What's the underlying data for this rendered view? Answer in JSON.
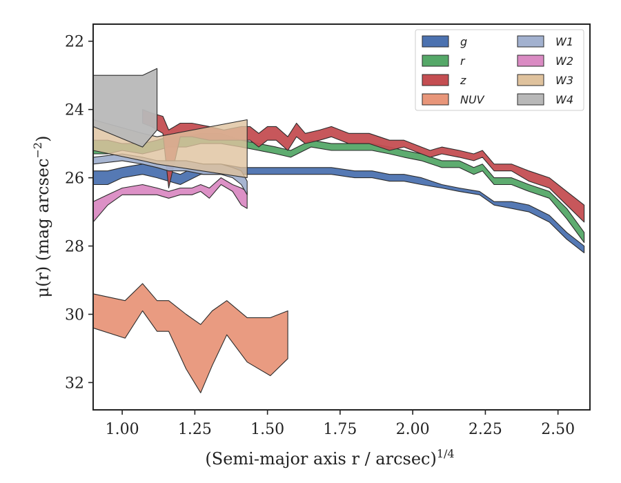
{
  "chart_data": {
    "type": "area",
    "subtype": "surface-brightness-profile-bands",
    "xlabel": "(Semi-major axis r / arcsec)",
    "xlabel_superscript": "1/4",
    "ylabel": "μ(r) (mag arcsec",
    "ylabel_superscript": "−2",
    "xlim": [
      0.9,
      2.61
    ],
    "ylim": [
      32.8,
      21.5
    ],
    "y_inverted": true,
    "xticks": [
      1.0,
      1.25,
      1.5,
      1.75,
      2.0,
      2.25,
      2.5
    ],
    "xtick_labels": [
      "1.00",
      "1.25",
      "1.50",
      "1.75",
      "2.00",
      "2.25",
      "2.50"
    ],
    "yticks": [
      22,
      24,
      26,
      28,
      30,
      32
    ],
    "ytick_labels": [
      "22",
      "24",
      "26",
      "28",
      "30",
      "32"
    ],
    "grid": false,
    "legend_position": "top-right",
    "legend_columns": 2,
    "series": [
      {
        "name": "NUV",
        "color": "#e8967a",
        "x": [
          0.9,
          1.01,
          1.07,
          1.12,
          1.16,
          1.22,
          1.27,
          1.31,
          1.36,
          1.43,
          1.51,
          1.57
        ],
        "y_upper": [
          29.4,
          29.6,
          29.1,
          29.6,
          29.6,
          30.0,
          30.3,
          29.9,
          29.6,
          30.1,
          30.1,
          29.9
        ],
        "y_lower": [
          30.4,
          30.7,
          29.9,
          30.5,
          30.5,
          31.6,
          32.3,
          31.5,
          30.6,
          31.4,
          31.8,
          31.3
        ]
      },
      {
        "name": "W2",
        "color": "#da8bc3",
        "x": [
          0.9,
          0.95,
          1.0,
          1.07,
          1.12,
          1.16,
          1.2,
          1.24,
          1.27,
          1.3,
          1.34,
          1.38,
          1.41,
          1.43
        ],
        "y_upper": [
          26.7,
          26.5,
          26.3,
          26.2,
          26.3,
          26.4,
          26.3,
          26.3,
          26.2,
          26.3,
          26.0,
          26.2,
          26.3,
          26.4
        ],
        "y_lower": [
          27.3,
          26.8,
          26.5,
          26.5,
          26.5,
          26.6,
          26.5,
          26.5,
          26.4,
          26.6,
          26.2,
          26.4,
          26.8,
          26.9
        ]
      },
      {
        "name": "g",
        "color": "#4c72b0",
        "x": [
          0.9,
          0.95,
          1.0,
          1.07,
          1.12,
          1.16,
          1.2,
          1.27,
          1.34,
          1.41,
          1.47,
          1.53,
          1.58,
          1.65,
          1.72,
          1.8,
          1.86,
          1.92,
          1.97,
          2.03,
          2.1,
          2.16,
          2.23,
          2.28,
          2.34,
          2.4,
          2.47,
          2.53,
          2.59
        ],
        "y_upper": [
          25.8,
          25.8,
          25.7,
          25.6,
          25.7,
          25.8,
          25.9,
          25.6,
          25.6,
          25.7,
          25.7,
          25.7,
          25.7,
          25.7,
          25.7,
          25.8,
          25.8,
          25.9,
          25.9,
          26.0,
          26.2,
          26.3,
          26.4,
          26.7,
          26.7,
          26.8,
          27.1,
          27.6,
          28.0
        ],
        "y_lower": [
          26.2,
          26.2,
          26.0,
          25.9,
          26.0,
          26.1,
          26.2,
          25.9,
          25.9,
          25.9,
          25.9,
          25.9,
          25.9,
          25.9,
          25.9,
          26.0,
          26.0,
          26.1,
          26.1,
          26.2,
          26.3,
          26.4,
          26.5,
          26.8,
          26.9,
          27.0,
          27.3,
          27.8,
          28.2
        ]
      },
      {
        "name": "r",
        "color": "#55a868",
        "x": [
          0.9,
          0.95,
          1.0,
          1.07,
          1.12,
          1.16,
          1.22,
          1.27,
          1.34,
          1.41,
          1.47,
          1.53,
          1.58,
          1.65,
          1.72,
          1.8,
          1.86,
          1.92,
          1.97,
          2.03,
          2.1,
          2.16,
          2.21,
          2.24,
          2.28,
          2.34,
          2.4,
          2.47,
          2.53,
          2.59
        ],
        "y_upper": [
          24.9,
          24.9,
          25.0,
          25.0,
          24.9,
          24.8,
          24.8,
          24.7,
          24.7,
          24.9,
          25.0,
          25.1,
          25.2,
          24.9,
          25.0,
          25.0,
          25.0,
          25.1,
          25.2,
          25.3,
          25.5,
          25.5,
          25.7,
          25.6,
          26.0,
          26.0,
          26.2,
          26.4,
          26.9,
          27.6
        ],
        "y_lower": [
          25.3,
          25.3,
          25.2,
          25.3,
          25.2,
          25.1,
          25.1,
          25.0,
          25.0,
          25.1,
          25.2,
          25.3,
          25.4,
          25.1,
          25.2,
          25.2,
          25.2,
          25.3,
          25.4,
          25.5,
          25.7,
          25.7,
          25.9,
          25.8,
          26.2,
          26.2,
          26.4,
          26.6,
          27.2,
          27.9
        ]
      },
      {
        "name": "z",
        "color": "#c44e52",
        "x": [
          1.07,
          1.1,
          1.14,
          1.16,
          1.2,
          1.24,
          1.3,
          1.35,
          1.41,
          1.44,
          1.47,
          1.5,
          1.53,
          1.57,
          1.6,
          1.63,
          1.68,
          1.72,
          1.78,
          1.85,
          1.92,
          1.97,
          2.03,
          2.06,
          2.1,
          2.16,
          2.21,
          2.24,
          2.28,
          2.34,
          2.4,
          2.47,
          2.53,
          2.59
        ],
        "y_upper": [
          24.0,
          24.1,
          24.2,
          24.6,
          24.4,
          24.4,
          24.5,
          24.6,
          24.5,
          24.5,
          24.7,
          24.5,
          24.5,
          24.8,
          24.4,
          24.7,
          24.6,
          24.5,
          24.7,
          24.7,
          24.9,
          24.9,
          25.1,
          25.2,
          25.1,
          25.2,
          25.3,
          25.2,
          25.6,
          25.6,
          25.8,
          26.0,
          26.4,
          26.8
        ],
        "y_lower": [
          24.4,
          24.5,
          24.7,
          26.3,
          24.8,
          24.8,
          24.9,
          24.9,
          24.9,
          24.9,
          25.1,
          24.9,
          24.9,
          25.2,
          24.8,
          25.0,
          24.9,
          24.8,
          25.0,
          25.0,
          25.2,
          25.1,
          25.3,
          25.4,
          25.3,
          25.4,
          25.5,
          25.4,
          25.8,
          25.8,
          26.1,
          26.3,
          26.8,
          27.3
        ]
      },
      {
        "name": "W1",
        "color": "#a2b1cf",
        "x": [
          0.9,
          1.0,
          1.07,
          1.12,
          1.16,
          1.22,
          1.28,
          1.34,
          1.38,
          1.41,
          1.43
        ],
        "y_upper": [
          25.4,
          25.3,
          25.4,
          25.5,
          25.5,
          25.5,
          25.6,
          25.6,
          25.7,
          25.8,
          26.1
        ],
        "y_lower": [
          25.6,
          25.5,
          25.6,
          25.7,
          25.8,
          25.8,
          25.9,
          25.9,
          26.0,
          26.2,
          26.5
        ]
      },
      {
        "name": "W3",
        "color": "#dfc29d",
        "x": [
          0.9,
          1.07,
          1.12,
          1.43
        ],
        "y_upper": [
          24.3,
          24.7,
          24.8,
          24.3
        ],
        "y_lower": [
          25.2,
          25.5,
          25.6,
          26.0
        ]
      },
      {
        "name": "W4",
        "color": "#b8b8b8",
        "x": [
          0.9,
          1.07,
          1.12
        ],
        "y_upper": [
          23.0,
          23.0,
          22.8
        ],
        "y_lower": [
          24.5,
          25.1,
          24.6
        ]
      }
    ],
    "legend_order": [
      "g",
      "r",
      "z",
      "NUV",
      "W1",
      "W2",
      "W3",
      "W4"
    ]
  }
}
